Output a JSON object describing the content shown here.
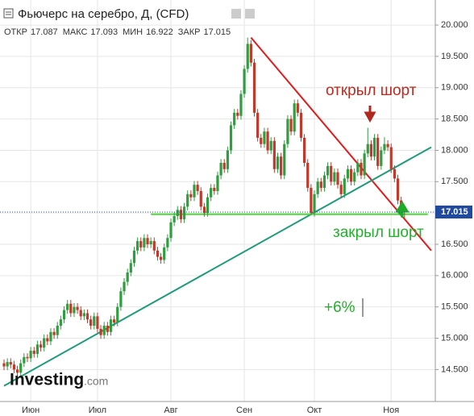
{
  "chart_data": {
    "type": "candlestick",
    "title": "Фьючерс на серебро, Д, (CFD)",
    "header": [
      {
        "label": "ОТКР",
        "value": 17.087
      },
      {
        "label": "МАКС",
        "value": 17.093
      },
      {
        "label": "МИН",
        "value": 16.922
      },
      {
        "label": "ЗАКР",
        "value": 17.015
      }
    ],
    "logo": [
      "Investing",
      ".com"
    ],
    "annotations": [
      "открыл шорт",
      "закрыл шорт",
      "+6%"
    ],
    "up_color": "#2e9e3e",
    "down_color": "#c0392b",
    "ylim": [
      13.99,
      20.4
    ],
    "yticks": [
      {
        "value": 14.5,
        "label": "14.500"
      },
      {
        "value": 15,
        "label": "15.000"
      },
      {
        "value": 15.5,
        "label": "15.500"
      },
      {
        "value": 16,
        "label": "16.000"
      },
      {
        "value": 16.5,
        "label": "16.500"
      },
      {
        "value": 17,
        "label": "17.000"
      },
      {
        "value": 17.5,
        "label": "17.500"
      },
      {
        "value": 18,
        "label": "18.000"
      },
      {
        "value": 18.5,
        "label": "18.500"
      },
      {
        "value": 19,
        "label": "19.000"
      },
      {
        "value": 19.5,
        "label": "19.500"
      },
      {
        "value": 20,
        "label": "20.000"
      }
    ],
    "grid": true,
    "last_price": {
      "value": 17.015,
      "label": "17.015"
    },
    "trendlines": [
      {
        "color": "#e31a1a",
        "points": [
          [
            74,
            19.8
          ],
          [
            128,
            16.4
          ]
        ]
      },
      {
        "color": "#1f9b7a",
        "points": [
          [
            0,
            14.24
          ],
          [
            128,
            18.05
          ]
        ]
      },
      {
        "color": "#4ddb3a",
        "points": [
          [
            44,
            16.98
          ],
          [
            127,
            16.98
          ]
        ]
      }
    ],
    "categories": [
      null,
      null,
      null,
      null,
      null,
      null,
      null,
      null,
      "Июн",
      null,
      null,
      null,
      null,
      null,
      null,
      null,
      null,
      null,
      null,
      null,
      null,
      null,
      null,
      null,
      null,
      null,
      null,
      null,
      "Июл",
      null,
      null,
      null,
      null,
      null,
      null,
      null,
      null,
      null,
      null,
      null,
      null,
      null,
      null,
      null,
      null,
      null,
      null,
      null,
      null,
      null,
      "Авг",
      null,
      null,
      null,
      null,
      null,
      null,
      null,
      null,
      null,
      null,
      null,
      null,
      null,
      null,
      null,
      null,
      null,
      null,
      null,
      null,
      null,
      "Сен",
      null,
      null,
      null,
      null,
      null,
      null,
      null,
      null,
      null,
      null,
      null,
      null,
      null,
      null,
      null,
      null,
      null,
      null,
      null,
      null,
      "Окт",
      null,
      null,
      null,
      null,
      null,
      null,
      null,
      null,
      null,
      null,
      null,
      null,
      null,
      null,
      null,
      null,
      null,
      null,
      null,
      null,
      null,
      null,
      "Ноя",
      null,
      null,
      null,
      null
    ],
    "candles": [
      [
        14.6,
        14.66,
        14.49,
        14.55
      ],
      [
        14.55,
        14.68,
        14.49,
        14.62
      ],
      [
        14.62,
        14.68,
        14.52,
        14.58
      ],
      [
        14.58,
        14.64,
        14.44,
        14.5
      ],
      [
        14.5,
        14.56,
        14.39,
        14.45
      ],
      [
        14.45,
        14.66,
        14.39,
        14.6
      ],
      [
        14.6,
        14.76,
        14.54,
        14.7
      ],
      [
        14.7,
        14.76,
        14.62,
        14.68
      ],
      [
        14.68,
        14.86,
        14.62,
        14.8
      ],
      [
        14.8,
        14.86,
        14.69,
        14.75
      ],
      [
        14.75,
        14.96,
        14.69,
        14.9
      ],
      [
        14.9,
        14.96,
        14.79,
        14.85
      ],
      [
        14.85,
        15.06,
        14.79,
        15.0
      ],
      [
        15.0,
        15.06,
        14.89,
        14.95
      ],
      [
        14.95,
        15.16,
        14.89,
        15.1
      ],
      [
        15.1,
        15.16,
        14.99,
        15.05
      ],
      [
        15.05,
        15.26,
        14.99,
        15.2
      ],
      [
        15.2,
        15.36,
        15.14,
        15.3
      ],
      [
        15.3,
        15.51,
        15.24,
        15.45
      ],
      [
        15.45,
        15.61,
        15.39,
        15.55
      ],
      [
        15.55,
        15.61,
        15.34,
        15.4
      ],
      [
        15.4,
        15.56,
        15.34,
        15.5
      ],
      [
        15.5,
        15.56,
        15.39,
        15.45
      ],
      [
        15.45,
        15.51,
        15.29,
        15.35
      ],
      [
        15.35,
        15.46,
        15.29,
        15.4
      ],
      [
        15.4,
        15.46,
        15.24,
        15.3
      ],
      [
        15.3,
        15.36,
        15.14,
        15.2
      ],
      [
        15.2,
        15.41,
        15.14,
        15.35
      ],
      [
        15.35,
        15.41,
        15.09,
        15.15
      ],
      [
        15.15,
        15.21,
        14.99,
        15.05
      ],
      [
        15.05,
        15.26,
        14.99,
        15.2
      ],
      [
        15.2,
        15.26,
        15.04,
        15.1
      ],
      [
        15.1,
        15.36,
        15.04,
        15.3
      ],
      [
        15.3,
        15.36,
        15.19,
        15.25
      ],
      [
        15.25,
        15.56,
        15.19,
        15.5
      ],
      [
        15.5,
        15.81,
        15.44,
        15.75
      ],
      [
        15.75,
        15.96,
        15.69,
        15.9
      ],
      [
        15.9,
        16.11,
        15.84,
        16.05
      ],
      [
        16.05,
        16.26,
        15.99,
        16.2
      ],
      [
        16.2,
        16.46,
        16.14,
        16.4
      ],
      [
        16.4,
        16.61,
        16.34,
        16.55
      ],
      [
        16.55,
        16.61,
        16.39,
        16.45
      ],
      [
        16.45,
        16.66,
        16.39,
        16.6
      ],
      [
        16.6,
        16.66,
        16.44,
        16.5
      ],
      [
        16.5,
        16.61,
        16.44,
        16.55
      ],
      [
        16.55,
        16.61,
        16.34,
        16.4
      ],
      [
        16.4,
        16.46,
        16.24,
        16.3
      ],
      [
        16.3,
        16.36,
        16.19,
        16.25
      ],
      [
        16.25,
        16.51,
        16.19,
        16.45
      ],
      [
        16.45,
        16.66,
        16.39,
        16.6
      ],
      [
        16.6,
        16.91,
        16.54,
        16.85
      ],
      [
        16.85,
        17.01,
        16.79,
        16.95
      ],
      [
        16.95,
        17.11,
        16.89,
        17.05
      ],
      [
        17.05,
        17.11,
        16.84,
        16.9
      ],
      [
        16.9,
        17.16,
        16.84,
        17.1
      ],
      [
        17.1,
        17.36,
        17.04,
        17.3
      ],
      [
        17.3,
        17.36,
        17.19,
        17.25
      ],
      [
        17.25,
        17.51,
        17.19,
        17.45
      ],
      [
        17.45,
        17.51,
        17.29,
        17.35
      ],
      [
        17.35,
        17.41,
        17.04,
        17.1
      ],
      [
        17.1,
        17.16,
        16.94,
        17.0
      ],
      [
        17.0,
        17.31,
        16.94,
        17.25
      ],
      [
        17.25,
        17.46,
        17.19,
        17.4
      ],
      [
        17.4,
        17.46,
        17.29,
        17.35
      ],
      [
        17.35,
        17.66,
        17.29,
        17.6
      ],
      [
        17.6,
        17.86,
        17.54,
        17.8
      ],
      [
        17.8,
        17.86,
        17.64,
        17.7
      ],
      [
        17.7,
        18.06,
        17.64,
        18.0
      ],
      [
        18.0,
        18.46,
        17.94,
        18.4
      ],
      [
        18.4,
        18.66,
        18.34,
        18.6
      ],
      [
        18.6,
        18.66,
        18.49,
        18.55
      ],
      [
        18.55,
        18.96,
        18.49,
        18.9
      ],
      [
        18.9,
        19.36,
        18.84,
        19.3
      ],
      [
        19.3,
        19.8,
        19.24,
        19.7
      ],
      [
        19.7,
        19.76,
        19.34,
        19.4
      ],
      [
        19.4,
        19.46,
        18.54,
        18.6
      ],
      [
        18.6,
        18.66,
        18.14,
        18.2
      ],
      [
        18.2,
        18.26,
        18.04,
        18.1
      ],
      [
        18.1,
        18.36,
        18.04,
        18.3
      ],
      [
        18.3,
        18.36,
        17.94,
        18.0
      ],
      [
        18.0,
        18.21,
        17.94,
        18.15
      ],
      [
        18.15,
        18.21,
        17.64,
        17.7
      ],
      [
        17.7,
        17.96,
        17.64,
        17.9
      ],
      [
        17.9,
        17.96,
        17.54,
        17.6
      ],
      [
        17.6,
        18.16,
        17.54,
        18.1
      ],
      [
        18.1,
        18.56,
        18.04,
        18.5
      ],
      [
        18.5,
        18.56,
        18.24,
        18.3
      ],
      [
        18.3,
        18.81,
        18.24,
        18.75
      ],
      [
        18.75,
        18.81,
        18.54,
        18.6
      ],
      [
        18.6,
        18.66,
        18.14,
        18.2
      ],
      [
        18.2,
        18.26,
        17.74,
        17.8
      ],
      [
        17.8,
        17.86,
        17.34,
        17.4
      ],
      [
        17.4,
        17.46,
        16.97,
        17.0
      ],
      [
        17.0,
        17.36,
        16.94,
        17.3
      ],
      [
        17.3,
        17.56,
        17.24,
        17.5
      ],
      [
        17.5,
        17.56,
        17.34,
        17.4
      ],
      [
        17.4,
        17.66,
        17.34,
        17.6
      ],
      [
        17.6,
        17.81,
        17.54,
        17.75
      ],
      [
        17.75,
        17.81,
        17.44,
        17.5
      ],
      [
        17.5,
        17.71,
        17.44,
        17.65
      ],
      [
        17.65,
        17.71,
        17.39,
        17.45
      ],
      [
        17.45,
        17.51,
        17.24,
        17.3
      ],
      [
        17.3,
        17.61,
        17.24,
        17.55
      ],
      [
        17.55,
        17.76,
        17.49,
        17.7
      ],
      [
        17.7,
        17.76,
        17.44,
        17.5
      ],
      [
        17.5,
        17.71,
        17.44,
        17.65
      ],
      [
        17.65,
        17.86,
        17.59,
        17.8
      ],
      [
        17.8,
        17.86,
        17.54,
        17.6
      ],
      [
        17.6,
        18.01,
        17.54,
        17.95
      ],
      [
        17.95,
        18.36,
        17.89,
        18.1
      ],
      [
        18.1,
        18.16,
        17.84,
        17.9
      ],
      [
        17.9,
        18.26,
        17.84,
        18.2
      ],
      [
        18.2,
        18.26,
        17.69,
        17.75
      ],
      [
        17.75,
        18.06,
        17.69,
        18.0
      ],
      [
        18.0,
        18.21,
        17.94,
        18.1
      ],
      [
        18.1,
        18.16,
        17.99,
        18.05
      ],
      [
        18.05,
        18.11,
        17.64,
        17.7
      ],
      [
        17.7,
        17.76,
        17.49,
        17.55
      ],
      [
        17.55,
        17.61,
        17.14,
        17.2
      ],
      [
        17.2,
        17.26,
        16.94,
        17.0
      ],
      [
        17.087,
        17.093,
        16.922,
        17.015
      ]
    ]
  }
}
